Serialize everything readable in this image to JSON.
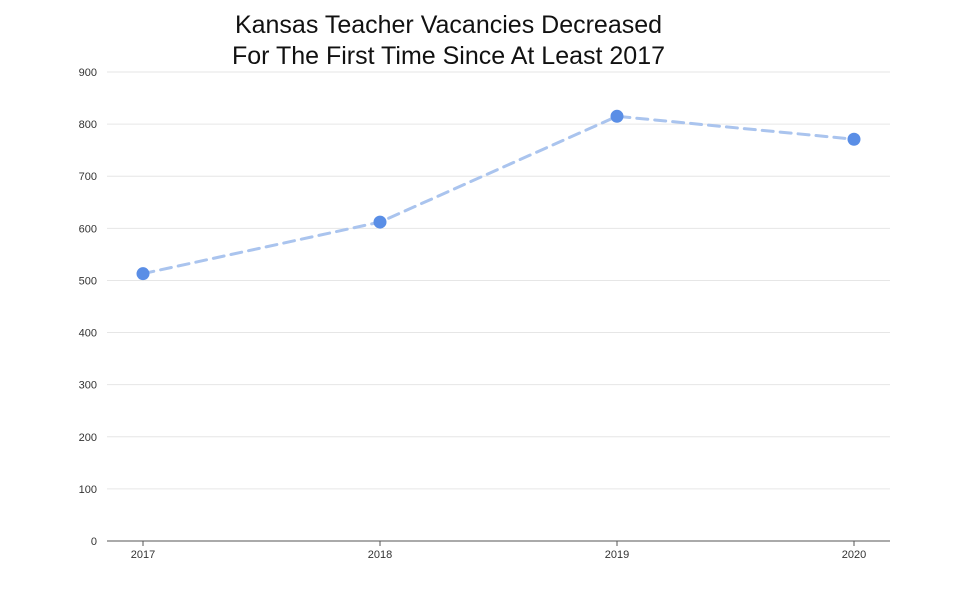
{
  "chart_data": {
    "type": "line",
    "title_lines": [
      "Kansas Teacher Vacancies Decreased",
      "For The First Time Since At Least 2017"
    ],
    "categories": [
      "2017",
      "2018",
      "2019",
      "2020"
    ],
    "values": [
      513,
      612,
      815,
      771
    ],
    "y_ticks": [
      "0",
      "100",
      "200",
      "300",
      "400",
      "500",
      "600",
      "700",
      "800",
      "900"
    ],
    "ylim": [
      0,
      900
    ],
    "grid": true,
    "legend": "none",
    "line_style": "dashed",
    "colors": {
      "line": "#aac4ee",
      "marker": "#5a8ee6",
      "grid": "#e6e6e6",
      "axis": "#555555"
    }
  }
}
